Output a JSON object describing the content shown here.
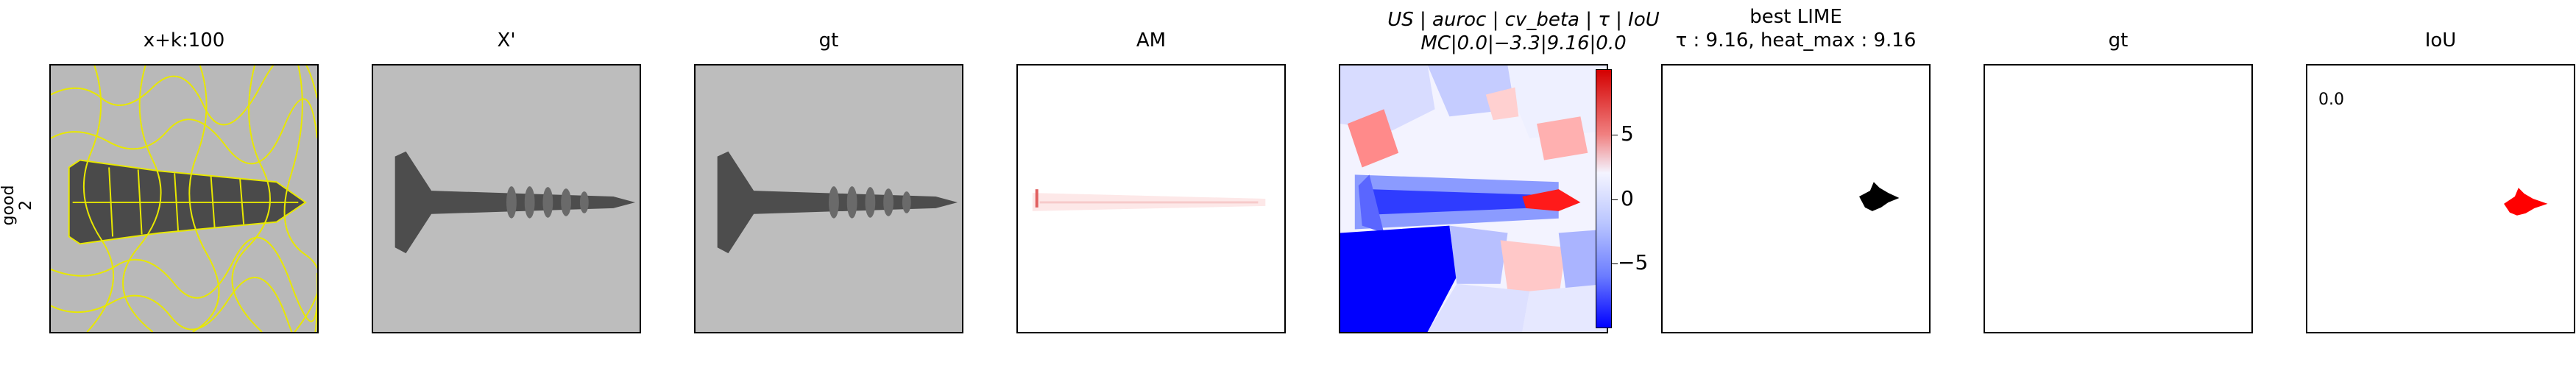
{
  "row": {
    "line1": "good",
    "line2": "2"
  },
  "titles": {
    "p1": "x+k:100",
    "p2": "X'",
    "p3": "gt",
    "p4": "AM",
    "p5_line1": "US | auroc | cv_beta | τ | IoU",
    "p5_line2": "MC|0.0|−3.3|9.16|0.0",
    "p6_line1": "best LIME",
    "p6_line2": "τ : 9.16, heat_max : 9.16",
    "p7": "gt",
    "p8": "IoU"
  },
  "colorbar": {
    "ticks": [
      "5",
      "0",
      "−5"
    ]
  },
  "iou_value": "0.0",
  "colors": {
    "overlay": "#e8e800",
    "positive": "#ff0000",
    "negative": "#0000ff",
    "background_gray": "#b8b8b8"
  }
}
